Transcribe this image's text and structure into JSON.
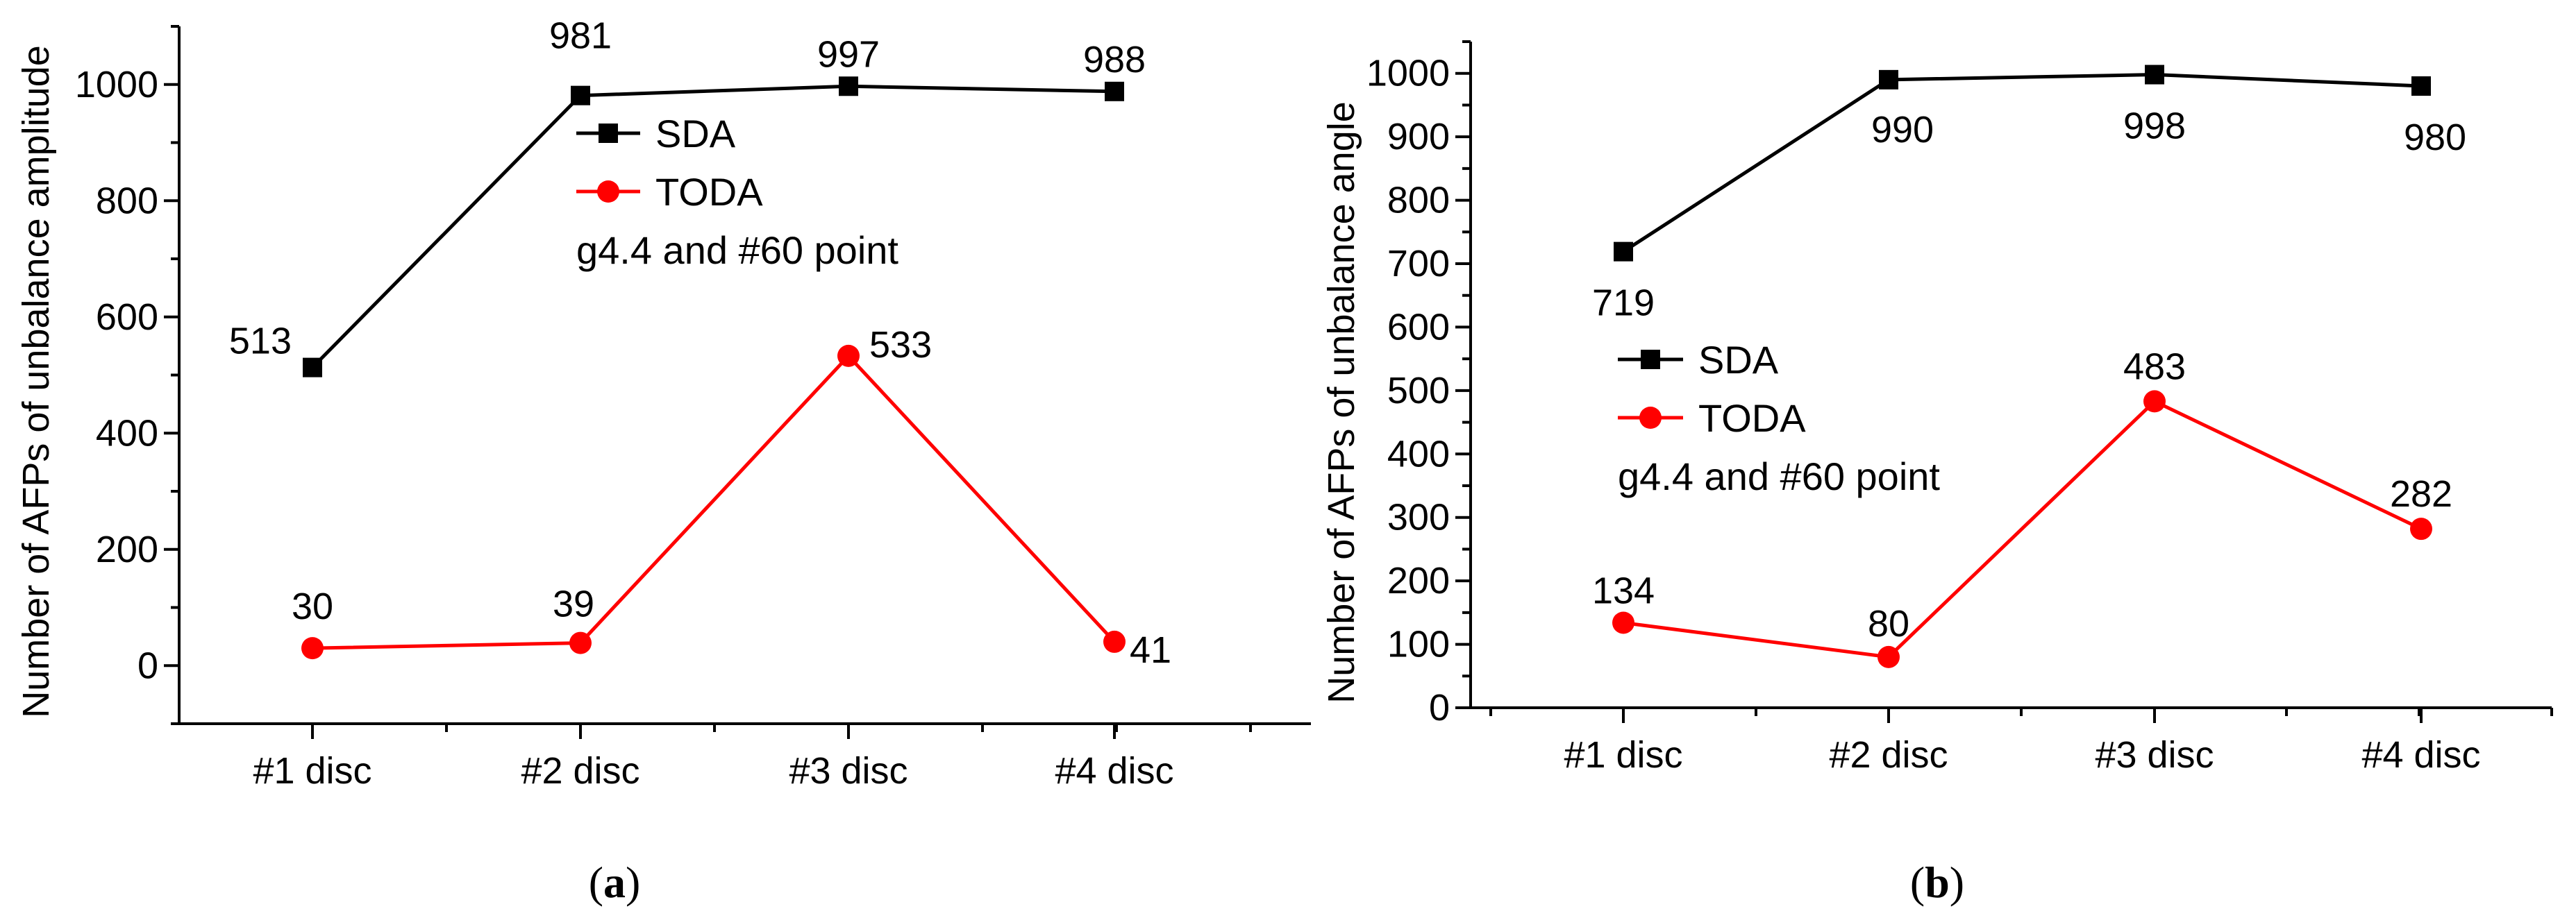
{
  "chart_data": [
    {
      "type": "line",
      "panel_label": {
        "prefix": "(",
        "letter": "a",
        "suffix": ")"
      },
      "ylabel": "Number of AFPs of unbalance amplitude",
      "xlabel": "",
      "categories": [
        "#1 disc",
        "#2 disc",
        "#3 disc",
        "#4 disc"
      ],
      "ylim": [
        -100,
        1100
      ],
      "yticks": [
        0,
        200,
        400,
        600,
        800,
        1000
      ],
      "legend_placement": "upper-middle",
      "annotation": "g4.4 and #60 point",
      "series": [
        {
          "name": "SDA",
          "color": "#000000",
          "marker": "square",
          "values": [
            513,
            981,
            997,
            988
          ]
        },
        {
          "name": "TODA",
          "color": "#ff0000",
          "marker": "circle",
          "values": [
            30,
            39,
            533,
            41
          ]
        }
      ]
    },
    {
      "type": "line",
      "panel_label": {
        "prefix": "(",
        "letter": "b",
        "suffix": ")"
      },
      "ylabel": "Number of AFPs of unbalance angle",
      "xlabel": "",
      "categories": [
        "#1 disc",
        "#2 disc",
        "#3 disc",
        "#4 disc"
      ],
      "ylim": [
        0,
        1050
      ],
      "yticks": [
        0,
        100,
        200,
        300,
        400,
        500,
        600,
        700,
        800,
        900,
        1000
      ],
      "legend_placement": "middle-left",
      "annotation": "g4.4 and #60 point",
      "series": [
        {
          "name": "SDA",
          "color": "#000000",
          "marker": "square",
          "values": [
            719,
            990,
            998,
            980
          ]
        },
        {
          "name": "TODA",
          "color": "#ff0000",
          "marker": "circle",
          "values": [
            134,
            80,
            483,
            282
          ]
        }
      ]
    }
  ]
}
